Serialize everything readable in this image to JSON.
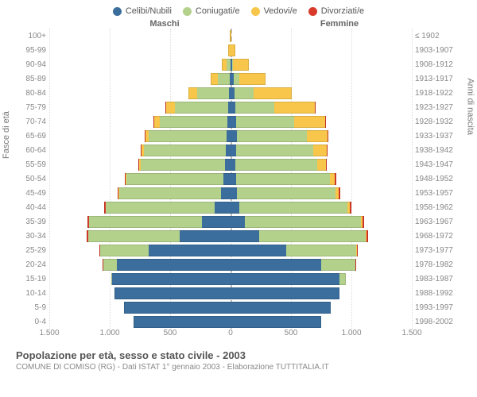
{
  "legend": [
    {
      "label": "Celibi/Nubili",
      "color": "#3b6e9c"
    },
    {
      "label": "Coniugati/e",
      "color": "#b3d18b"
    },
    {
      "label": "Vedovi/e",
      "color": "#f7c64a"
    },
    {
      "label": "Divorziati/e",
      "color": "#d93b2b"
    }
  ],
  "header_left": "Maschi",
  "header_right": "Femmine",
  "yaxis_left_title": "Fasce di età",
  "yaxis_right_title": "Anni di nascita",
  "title": "Popolazione per età, sesso e stato civile - 2003",
  "subtitle": "COMUNE DI COMISO (RG) - Dati ISTAT 1° gennaio 2003 - Elaborazione TUTTITALIA.IT",
  "xmax": 1500,
  "xticks_left": [
    "1.500",
    "1.000",
    "500"
  ],
  "xtick_center": "0",
  "xticks_right": [
    "500",
    "1.000",
    "1.500"
  ],
  "colors": {
    "celibi": "#3b6e9c",
    "coniugati": "#b3d18b",
    "vedovi": "#f7c64a",
    "divorziati": "#d93b2b",
    "grid": "#e8e8e8",
    "centerline": "#bbbbbb",
    "text": "#888888",
    "bg": "#ffffff"
  },
  "rows": [
    {
      "age": "100+",
      "birth": "≤ 1902",
      "m": {
        "c": 0,
        "co": 0,
        "v": 3,
        "d": 0
      },
      "f": {
        "c": 0,
        "co": 0,
        "v": 6,
        "d": 0
      }
    },
    {
      "age": "95-99",
      "birth": "1903-1907",
      "m": {
        "c": 0,
        "co": 3,
        "v": 15,
        "d": 0
      },
      "f": {
        "c": 2,
        "co": 0,
        "v": 40,
        "d": 0
      }
    },
    {
      "age": "90-94",
      "birth": "1908-1912",
      "m": {
        "c": 3,
        "co": 30,
        "v": 40,
        "d": 0
      },
      "f": {
        "c": 10,
        "co": 10,
        "v": 130,
        "d": 0
      }
    },
    {
      "age": "85-89",
      "birth": "1913-1917",
      "m": {
        "c": 8,
        "co": 100,
        "v": 60,
        "d": 0
      },
      "f": {
        "c": 25,
        "co": 45,
        "v": 220,
        "d": 0
      }
    },
    {
      "age": "80-84",
      "birth": "1918-1922",
      "m": {
        "c": 15,
        "co": 260,
        "v": 75,
        "d": 0
      },
      "f": {
        "c": 35,
        "co": 155,
        "v": 320,
        "d": 0
      }
    },
    {
      "age": "75-79",
      "birth": "1923-1927",
      "m": {
        "c": 20,
        "co": 440,
        "v": 70,
        "d": 2
      },
      "f": {
        "c": 40,
        "co": 320,
        "v": 340,
        "d": 2
      }
    },
    {
      "age": "70-74",
      "birth": "1928-1932",
      "m": {
        "c": 25,
        "co": 560,
        "v": 50,
        "d": 3
      },
      "f": {
        "c": 45,
        "co": 480,
        "v": 260,
        "d": 3
      }
    },
    {
      "age": "65-69",
      "birth": "1933-1937",
      "m": {
        "c": 35,
        "co": 640,
        "v": 30,
        "d": 4
      },
      "f": {
        "c": 50,
        "co": 580,
        "v": 170,
        "d": 5
      }
    },
    {
      "age": "60-64",
      "birth": "1938-1942",
      "m": {
        "c": 40,
        "co": 680,
        "v": 20,
        "d": 5
      },
      "f": {
        "c": 45,
        "co": 640,
        "v": 110,
        "d": 6
      }
    },
    {
      "age": "55-59",
      "birth": "1943-1947",
      "m": {
        "c": 45,
        "co": 700,
        "v": 12,
        "d": 6
      },
      "f": {
        "c": 40,
        "co": 680,
        "v": 70,
        "d": 8
      }
    },
    {
      "age": "50-54",
      "birth": "1948-1952",
      "m": {
        "c": 60,
        "co": 800,
        "v": 8,
        "d": 8
      },
      "f": {
        "c": 45,
        "co": 780,
        "v": 40,
        "d": 10
      }
    },
    {
      "age": "45-49",
      "birth": "1953-1957",
      "m": {
        "c": 80,
        "co": 840,
        "v": 5,
        "d": 10
      },
      "f": {
        "c": 50,
        "co": 820,
        "v": 25,
        "d": 12
      }
    },
    {
      "age": "40-44",
      "birth": "1958-1962",
      "m": {
        "c": 130,
        "co": 900,
        "v": 3,
        "d": 10
      },
      "f": {
        "c": 70,
        "co": 900,
        "v": 15,
        "d": 14
      }
    },
    {
      "age": "35-39",
      "birth": "1963-1967",
      "m": {
        "c": 240,
        "co": 930,
        "v": 2,
        "d": 10
      },
      "f": {
        "c": 120,
        "co": 960,
        "v": 10,
        "d": 14
      }
    },
    {
      "age": "30-34",
      "birth": "1968-1972",
      "m": {
        "c": 420,
        "co": 760,
        "v": 1,
        "d": 8
      },
      "f": {
        "c": 240,
        "co": 880,
        "v": 6,
        "d": 12
      }
    },
    {
      "age": "25-29",
      "birth": "1973-1977",
      "m": {
        "c": 680,
        "co": 400,
        "v": 0,
        "d": 4
      },
      "f": {
        "c": 460,
        "co": 580,
        "v": 3,
        "d": 8
      }
    },
    {
      "age": "20-24",
      "birth": "1978-1982",
      "m": {
        "c": 940,
        "co": 110,
        "v": 0,
        "d": 1
      },
      "f": {
        "c": 750,
        "co": 280,
        "v": 1,
        "d": 3
      }
    },
    {
      "age": "15-19",
      "birth": "1983-1987",
      "m": {
        "c": 980,
        "co": 8,
        "v": 0,
        "d": 0
      },
      "f": {
        "c": 900,
        "co": 55,
        "v": 0,
        "d": 0
      }
    },
    {
      "age": "10-14",
      "birth": "1988-1992",
      "m": {
        "c": 960,
        "co": 0,
        "v": 0,
        "d": 0
      },
      "f": {
        "c": 900,
        "co": 0,
        "v": 0,
        "d": 0
      }
    },
    {
      "age": "5-9",
      "birth": "1993-1997",
      "m": {
        "c": 880,
        "co": 0,
        "v": 0,
        "d": 0
      },
      "f": {
        "c": 830,
        "co": 0,
        "v": 0,
        "d": 0
      }
    },
    {
      "age": "0-4",
      "birth": "1998-2002",
      "m": {
        "c": 800,
        "co": 0,
        "v": 0,
        "d": 0
      },
      "f": {
        "c": 750,
        "co": 0,
        "v": 0,
        "d": 0
      }
    }
  ]
}
